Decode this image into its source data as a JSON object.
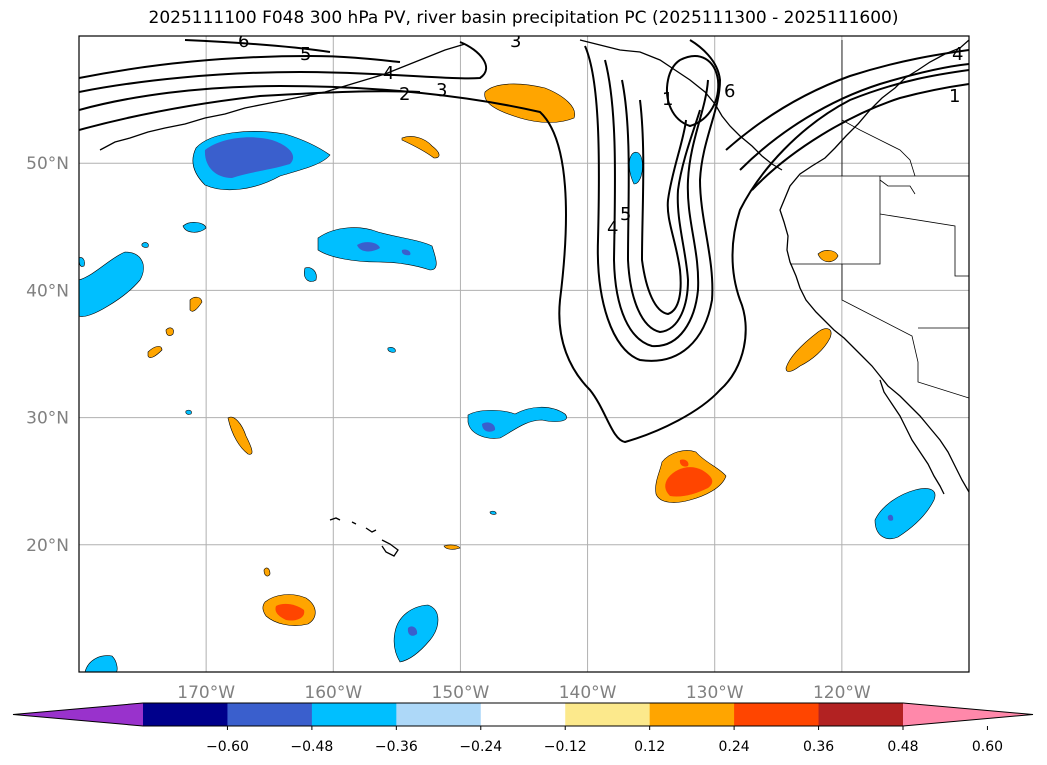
{
  "title": "2025111100 F048 300 hPa PV, river basin precipitation PC (2025111300 - 2025111600)",
  "map": {
    "lon_ticks": [
      "170°W",
      "160°W",
      "150°W",
      "140°W",
      "130°W",
      "120°W"
    ],
    "lat_ticks": [
      "50°N",
      "40°N",
      "30°N",
      "20°N"
    ],
    "lon_values": [
      -170,
      -160,
      -150,
      -140,
      -130,
      -120
    ],
    "lat_values": [
      50,
      40,
      30,
      20
    ],
    "extent": {
      "lon_min": -180,
      "lon_max": -110,
      "lat_min": 10,
      "lat_max": 60
    },
    "grid": true
  },
  "contour_labels": [
    "6",
    "5",
    "4",
    "3",
    "2",
    "3",
    "1",
    "4",
    "6",
    "4",
    "5",
    "1"
  ],
  "colorbar": {
    "tick_labels": [
      "−0.60",
      "−0.48",
      "−0.36",
      "−0.24",
      "−0.12",
      "0.12",
      "0.24",
      "0.36",
      "0.48",
      "0.60"
    ],
    "colors": [
      "#9932cc",
      "#00008b",
      "#3a5fcd",
      "#00bfff",
      "#add8f8",
      "#ffffff",
      "#fce98c",
      "#ffa500",
      "#ff4500",
      "#b22222",
      "#ff88aa"
    ],
    "extend": "both"
  }
}
